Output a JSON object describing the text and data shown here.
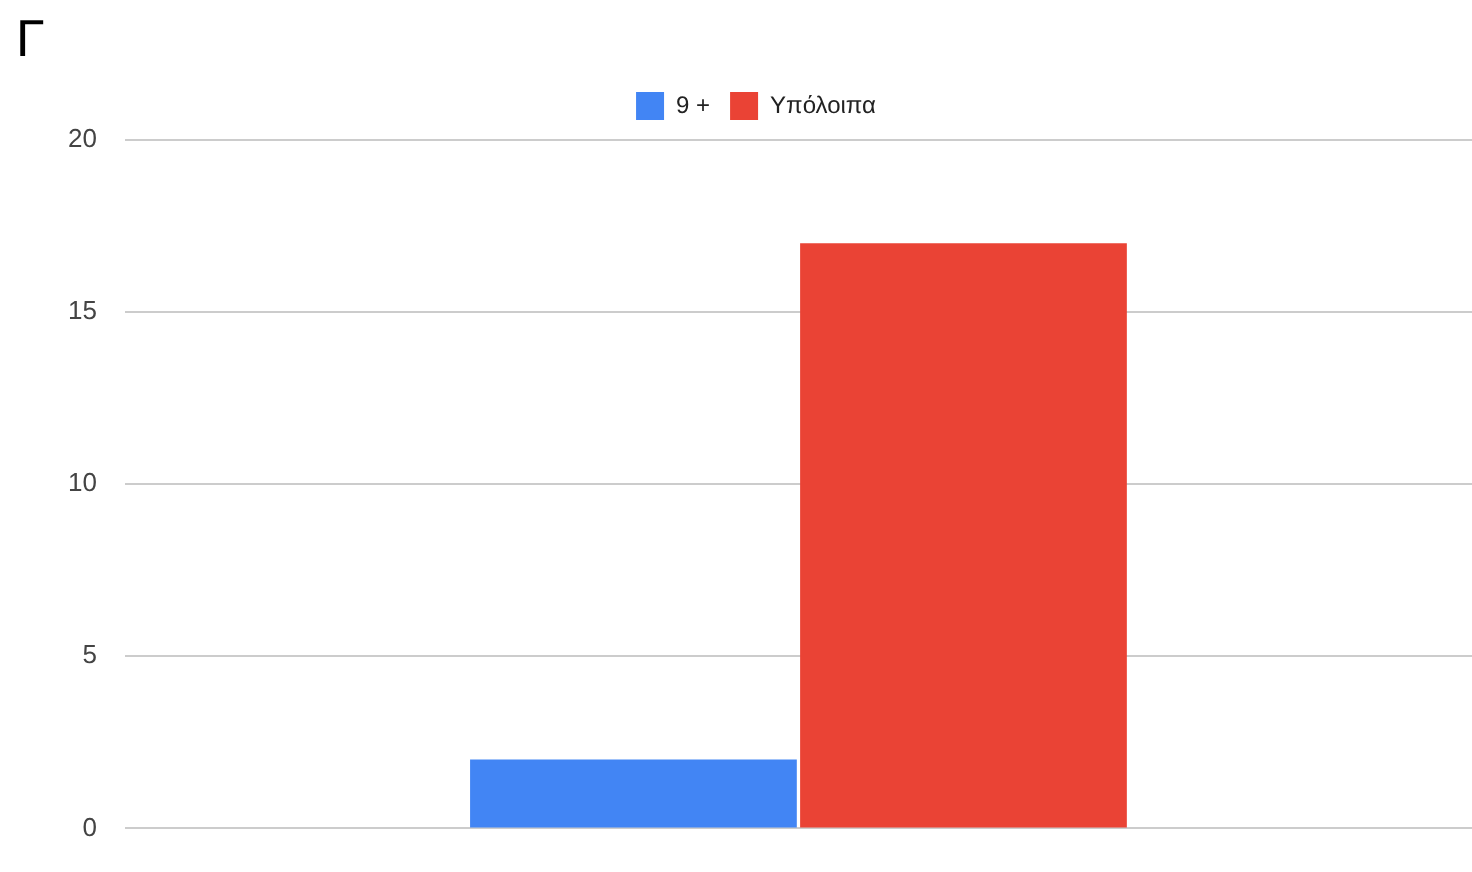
{
  "chart_data": {
    "type": "bar",
    "title": "Γ",
    "categories": [
      null
    ],
    "series": [
      {
        "name": "9 +",
        "color": "#4285f4",
        "values": [
          2
        ]
      },
      {
        "name": "Υπόλοιπα",
        "color": "#ea4335",
        "values": [
          17
        ]
      }
    ],
    "ylim": [
      0,
      20
    ],
    "yticks": [
      0,
      5,
      10,
      15,
      20
    ],
    "grid": "y",
    "legend": "top"
  }
}
